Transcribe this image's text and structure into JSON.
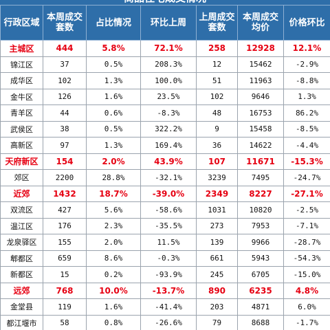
{
  "title": "商品住宅成交情况",
  "headers": [
    "行政区域",
    "本周成交套数",
    "占比情况",
    "环比上周",
    "上周成交套数",
    "本周成交均价",
    "价格环比"
  ],
  "rows": [
    {
      "highlight": true,
      "cells": [
        "主城区",
        "444",
        "5.8%",
        "72.1%",
        "258",
        "12928",
        "12.1%"
      ]
    },
    {
      "highlight": false,
      "cells": [
        "锦江区",
        "37",
        "0.5%",
        "208.3%",
        "12",
        "15462",
        "-2.9%"
      ]
    },
    {
      "highlight": false,
      "cells": [
        "成华区",
        "102",
        "1.3%",
        "100.0%",
        "51",
        "11963",
        "-8.8%"
      ]
    },
    {
      "highlight": false,
      "cells": [
        "金牛区",
        "126",
        "1.6%",
        "23.5%",
        "102",
        "9646",
        "1.3%"
      ]
    },
    {
      "highlight": false,
      "cells": [
        "青羊区",
        "44",
        "0.6%",
        "-8.3%",
        "48",
        "16753",
        "86.2%"
      ]
    },
    {
      "highlight": false,
      "cells": [
        "武侯区",
        "38",
        "0.5%",
        "322.2%",
        "9",
        "15458",
        "-8.5%"
      ]
    },
    {
      "highlight": false,
      "cells": [
        "高新区",
        "97",
        "1.3%",
        "169.4%",
        "36",
        "14622",
        "-4.4%"
      ]
    },
    {
      "highlight": true,
      "cells": [
        "天府新区",
        "154",
        "2.0%",
        "43.9%",
        "107",
        "11671",
        "-15.3%"
      ]
    },
    {
      "highlight": false,
      "cells": [
        "郊区",
        "2200",
        "28.8%",
        "-32.1%",
        "3239",
        "7495",
        "-24.7%"
      ]
    },
    {
      "highlight": true,
      "cells": [
        "近郊",
        "1432",
        "18.7%",
        "-39.0%",
        "2349",
        "8227",
        "-27.1%"
      ]
    },
    {
      "highlight": false,
      "cells": [
        "双流区",
        "427",
        "5.6%",
        "-58.6%",
        "1031",
        "10820",
        "-2.5%"
      ]
    },
    {
      "highlight": false,
      "cells": [
        "温江区",
        "176",
        "2.3%",
        "-35.5%",
        "273",
        "7953",
        "-7.1%"
      ]
    },
    {
      "highlight": false,
      "cells": [
        "龙泉驿区",
        "155",
        "2.0%",
        "11.5%",
        "139",
        "9966",
        "-28.7%"
      ]
    },
    {
      "highlight": false,
      "cells": [
        "郫都区",
        "659",
        "8.6%",
        "-0.3%",
        "661",
        "5943",
        "-54.3%"
      ]
    },
    {
      "highlight": false,
      "cells": [
        "新都区",
        "15",
        "0.2%",
        "-93.9%",
        "245",
        "6705",
        "-15.0%"
      ]
    },
    {
      "highlight": true,
      "cells": [
        "远郊",
        "768",
        "10.0%",
        "-13.7%",
        "890",
        "6235",
        "4.8%"
      ]
    },
    {
      "highlight": false,
      "cells": [
        "金堂县",
        "119",
        "1.6%",
        "-41.4%",
        "203",
        "4871",
        "6.0%"
      ]
    },
    {
      "highlight": false,
      "cells": [
        "都江堰市",
        "58",
        "0.8%",
        "-26.6%",
        "79",
        "8688",
        "-1.7%"
      ]
    }
  ]
}
